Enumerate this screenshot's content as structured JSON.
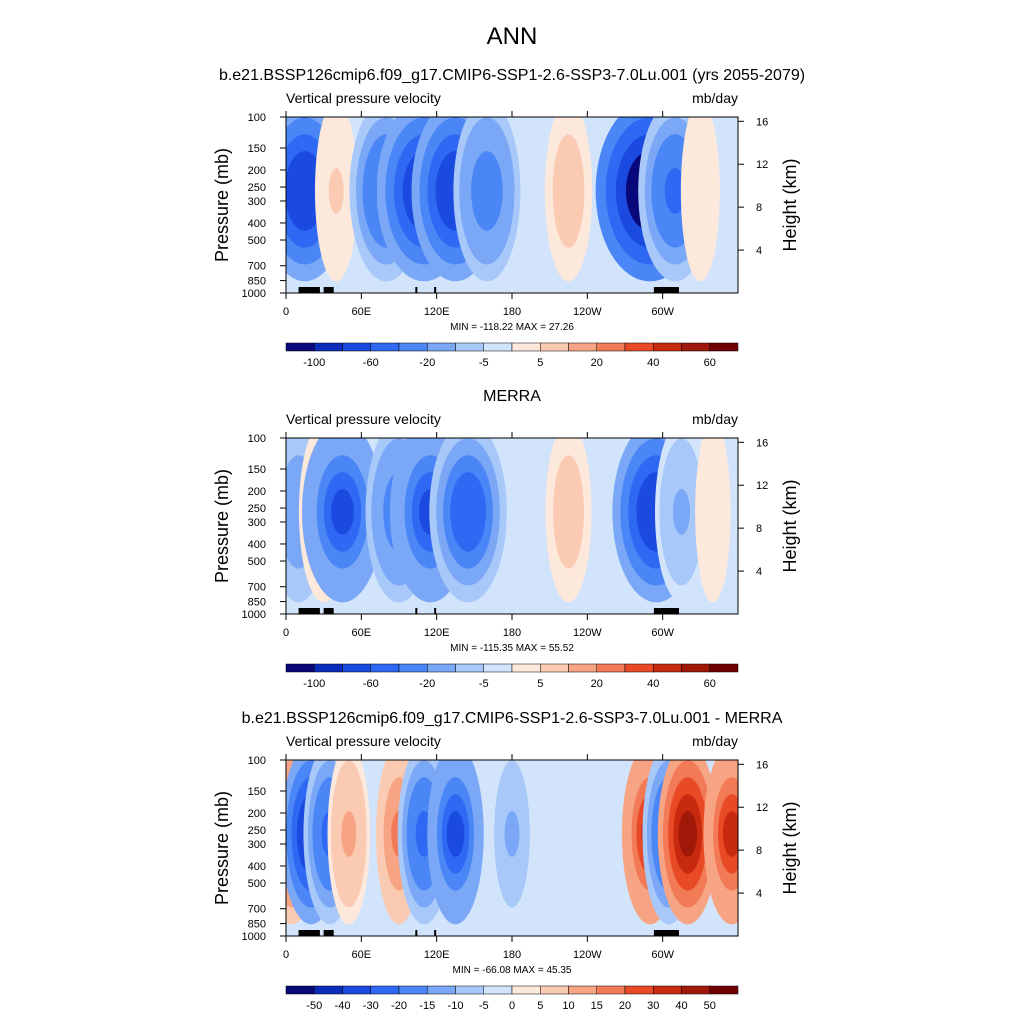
{
  "figure": {
    "title": "ANN"
  },
  "chart_data": [
    {
      "type": "heatmap",
      "title": "b.e21.BSSP126cmip6.f09_g17.CMIP6-SSP1-2.6-SSP3-7.0Lu.001 (yrs 2055-2079)",
      "left_label": "Vertical pressure velocity",
      "right_label": "mb/day",
      "xlabel": "",
      "ylabel": "Pressure (mb)",
      "ylabel_right": "Height (km)",
      "x_ticks": [
        "0",
        "60E",
        "120E",
        "180",
        "120W",
        "60W"
      ],
      "y_ticks": [
        "100",
        "150",
        "200",
        "250",
        "300",
        "400",
        "500",
        "700",
        "850",
        "1000"
      ],
      "y_ticks_right": [
        "16",
        "12",
        "8",
        "4"
      ],
      "stats": "MIN = -118.22  MAX =  27.26",
      "colorbar_labels": [
        "-100",
        "-60",
        "-20",
        "-5",
        "5",
        "20",
        "40",
        "60"
      ],
      "colorbar_colors": [
        "#08087a",
        "#0a2cba",
        "#1a4ae0",
        "#2f68f2",
        "#4a86f6",
        "#7aa8f6",
        "#a7c8f8",
        "#d2e4fb",
        "#fde8dc",
        "#fbcab2",
        "#f7a484",
        "#f27a56",
        "#e84a26",
        "#c82a10",
        "#a01808",
        "#700000"
      ],
      "features": [
        {
          "lon": 15,
          "value": -80
        },
        {
          "lon": 40,
          "value": 15
        },
        {
          "lon": 80,
          "value": -60
        },
        {
          "lon": 110,
          "value": -90
        },
        {
          "lon": 135,
          "value": -80
        },
        {
          "lon": 160,
          "value": -50
        },
        {
          "lon": 225,
          "value": 22
        },
        {
          "lon": 290,
          "value": -110
        },
        {
          "lon": 310,
          "value": -60
        },
        {
          "lon": 330,
          "value": 10
        }
      ],
      "ylim": [
        1000,
        100
      ]
    },
    {
      "type": "heatmap",
      "title": "MERRA",
      "left_label": "Vertical pressure velocity",
      "right_label": "mb/day",
      "xlabel": "",
      "ylabel": "Pressure (mb)",
      "ylabel_right": "Height (km)",
      "x_ticks": [
        "0",
        "60E",
        "120E",
        "180",
        "120W",
        "60W"
      ],
      "y_ticks": [
        "100",
        "150",
        "200",
        "250",
        "300",
        "400",
        "500",
        "700",
        "850",
        "1000"
      ],
      "y_ticks_right": [
        "16",
        "12",
        "8",
        "4"
      ],
      "stats": "MIN = -115.35  MAX =  55.52",
      "colorbar_labels": [
        "-100",
        "-60",
        "-20",
        "-5",
        "5",
        "20",
        "40",
        "60"
      ],
      "colorbar_colors": [
        "#08087a",
        "#0a2cba",
        "#1a4ae0",
        "#2f68f2",
        "#4a86f6",
        "#7aa8f6",
        "#a7c8f8",
        "#d2e4fb",
        "#fde8dc",
        "#fbcab2",
        "#f7a484",
        "#f27a56",
        "#e84a26",
        "#c82a10",
        "#a01808",
        "#700000"
      ],
      "features": [
        {
          "lon": 10,
          "value": -40
        },
        {
          "lon": 30,
          "value": 25
        },
        {
          "lon": 45,
          "value": -70
        },
        {
          "lon": 90,
          "value": -50
        },
        {
          "lon": 115,
          "value": -70
        },
        {
          "lon": 145,
          "value": -65
        },
        {
          "lon": 225,
          "value": 20
        },
        {
          "lon": 295,
          "value": -80
        },
        {
          "lon": 315,
          "value": -30
        },
        {
          "lon": 340,
          "value": 5
        }
      ],
      "ylim": [
        1000,
        100
      ]
    },
    {
      "type": "heatmap",
      "title": "b.e21.BSSP126cmip6.f09_g17.CMIP6-SSP1-2.6-SSP3-7.0Lu.001 - MERRA",
      "left_label": "Vertical pressure velocity",
      "right_label": "mb/day",
      "xlabel": "",
      "ylabel": "Pressure (mb)",
      "ylabel_right": "Height (km)",
      "x_ticks": [
        "0",
        "60E",
        "120E",
        "180",
        "120W",
        "60W"
      ],
      "y_ticks": [
        "100",
        "150",
        "200",
        "250",
        "300",
        "400",
        "500",
        "700",
        "850",
        "1000"
      ],
      "y_ticks_right": [
        "16",
        "12",
        "8",
        "4"
      ],
      "stats": "MIN = -66.08  MAX =  45.35",
      "colorbar_labels": [
        "-50",
        "-40",
        "-30",
        "-20",
        "-15",
        "-10",
        "-5",
        "0",
        "5",
        "10",
        "15",
        "20",
        "30",
        "40",
        "50"
      ],
      "colorbar_colors": [
        "#08087a",
        "#0a2cba",
        "#1a4ae0",
        "#2f68f2",
        "#4a86f6",
        "#7aa8f6",
        "#a7c8f8",
        "#d2e4fb",
        "#fde8dc",
        "#fbcab2",
        "#f7a484",
        "#f27a56",
        "#e84a26",
        "#c82a10",
        "#a01808",
        "#700000"
      ],
      "features": [
        {
          "lon": 5,
          "value": 30
        },
        {
          "lon": 20,
          "value": -40
        },
        {
          "lon": 35,
          "value": -30
        },
        {
          "lon": 50,
          "value": 15
        },
        {
          "lon": 90,
          "value": 20
        },
        {
          "lon": 110,
          "value": -30
        },
        {
          "lon": 135,
          "value": -35
        },
        {
          "lon": 180,
          "value": -15
        },
        {
          "lon": 290,
          "value": 35
        },
        {
          "lon": 305,
          "value": -30
        },
        {
          "lon": 320,
          "value": 40
        },
        {
          "lon": 355,
          "value": 35
        }
      ],
      "ylim": [
        1000,
        100
      ]
    }
  ]
}
